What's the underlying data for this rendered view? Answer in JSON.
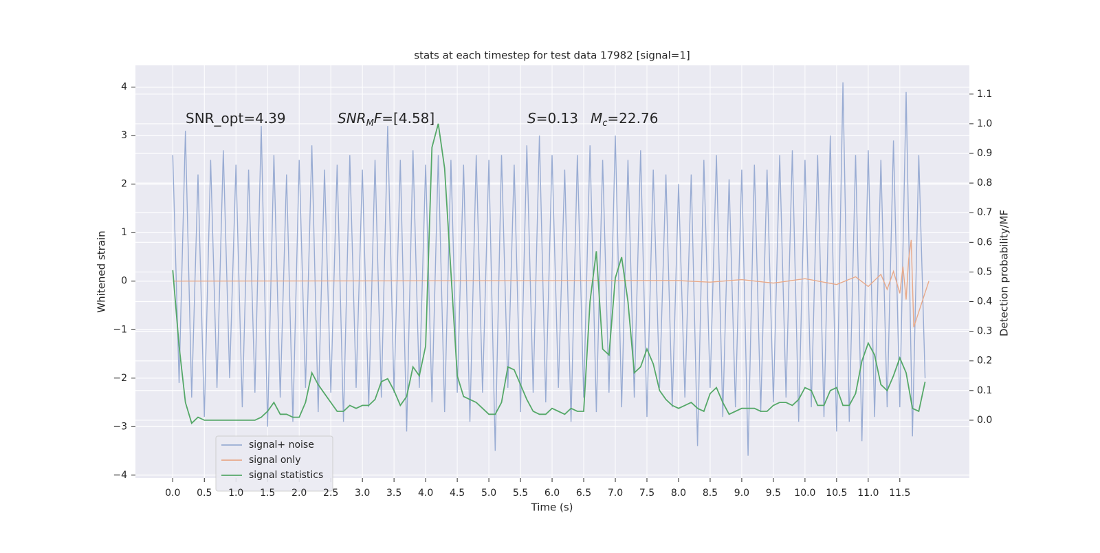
{
  "chart_data": {
    "type": "line",
    "title": "stats at each timestep for test data 17982 [signal=1]",
    "xlabel": "Time (s)",
    "ylabel": "Whitened strain",
    "y2label": "Detection probability/MF",
    "annotations": [
      [
        "SNR_opt=4.39"
      ],
      [
        "SNR",
        "M",
        "F",
        "=[4.58]"
      ],
      [
        "S",
        "=0.13"
      ],
      [
        "M",
        "c",
        "=22.76"
      ]
    ],
    "x": [
      0,
      0.1,
      0.2,
      0.3,
      0.4,
      0.5,
      0.6,
      0.7,
      0.8,
      0.9,
      1,
      1.1,
      1.2,
      1.3,
      1.4,
      1.5,
      1.6,
      1.7,
      1.8,
      1.9,
      2,
      2.1,
      2.2,
      2.3,
      2.4,
      2.5,
      2.6,
      2.7,
      2.8,
      2.9,
      3,
      3.1,
      3.2,
      3.3,
      3.4,
      3.5,
      3.6,
      3.7,
      3.8,
      3.9,
      4,
      4.1,
      4.2,
      4.3,
      4.4,
      4.5,
      4.6,
      4.7,
      4.8,
      4.9,
      5,
      5.1,
      5.2,
      5.3,
      5.4,
      5.5,
      5.6,
      5.7,
      5.8,
      5.9,
      6,
      6.1,
      6.2,
      6.3,
      6.4,
      6.5,
      6.6,
      6.7,
      6.8,
      6.9,
      7,
      7.1,
      7.2,
      7.3,
      7.4,
      7.5,
      7.6,
      7.7,
      7.8,
      7.9,
      8,
      8.1,
      8.2,
      8.3,
      8.4,
      8.5,
      8.6,
      8.7,
      8.8,
      8.9,
      9,
      9.1,
      9.2,
      9.3,
      9.4,
      9.5,
      9.6,
      9.7,
      9.8,
      9.9,
      10,
      10.1,
      10.2,
      10.3,
      10.4,
      10.5,
      10.6,
      10.7,
      10.8,
      10.9,
      11,
      11.1,
      11.2,
      11.3,
      11.4,
      11.5,
      11.6,
      11.7,
      11.8,
      11.9
    ],
    "series": [
      {
        "name": "signal+ noise",
        "color": "#99acd3",
        "values": [
          2.6,
          -2.1,
          3.1,
          -2.4,
          2.2,
          -2.8,
          2.5,
          -2.2,
          2.7,
          -2.0,
          2.4,
          -2.6,
          2.3,
          -2.3,
          3.2,
          -3.0,
          2.6,
          -2.4,
          2.2,
          -2.9,
          2.5,
          -2.2,
          2.8,
          -2.7,
          2.3,
          -2.3,
          2.4,
          -2.9,
          2.6,
          -2.2,
          2.3,
          -2.6,
          2.5,
          -2.4,
          3.2,
          -2.3,
          2.5,
          -3.1,
          2.7,
          -2.2,
          2.4,
          -2.5,
          2.6,
          -2.7,
          2.5,
          -2.3,
          2.4,
          -2.9,
          2.6,
          -2.3,
          2.5,
          -3.5,
          2.6,
          -2.2,
          2.4,
          -2.7,
          2.8,
          -2.3,
          3.0,
          -2.5,
          2.6,
          -2.2,
          2.3,
          -2.9,
          2.6,
          -2.4,
          2.8,
          -2.7,
          2.5,
          -2.3,
          3.0,
          -2.6,
          2.5,
          -2.4,
          2.7,
          -2.8,
          2.3,
          -2.2,
          2.2,
          -2.6,
          2.0,
          -2.4,
          2.2,
          -3.4,
          2.5,
          -2.2,
          2.6,
          -2.8,
          2.1,
          -2.6,
          2.3,
          -3.6,
          2.4,
          -2.7,
          2.3,
          -2.5,
          2.6,
          -2.4,
          2.7,
          -2.9,
          2.5,
          -2.6,
          2.6,
          -2.8,
          3.0,
          -3.1,
          4.1,
          -2.9,
          2.6,
          -3.3,
          2.7,
          -2.8,
          2.5,
          -2.6,
          2.9,
          -2.6,
          3.9,
          -3.2,
          2.6,
          -2.0
        ]
      },
      {
        "name": "signal only",
        "color": "#e8a989",
        "x": [
          0,
          8.0,
          8.5,
          9.0,
          9.5,
          10.0,
          10.5,
          10.8,
          11.0,
          11.2,
          11.3,
          11.4,
          11.5,
          11.55,
          11.6,
          11.64,
          11.68,
          11.72,
          11.96
        ],
        "values": [
          0,
          0.01,
          -0.02,
          0.03,
          -0.04,
          0.05,
          -0.07,
          0.09,
          -0.11,
          0.14,
          -0.17,
          0.2,
          -0.25,
          0.3,
          -0.38,
          0.45,
          0.85,
          -0.95,
          0
        ]
      },
      {
        "name": "signal statistics",
        "color": "#55a868",
        "axis": "y2",
        "values": [
          0.506,
          0.25,
          0.06,
          -0.01,
          0.01,
          0,
          0,
          0,
          0,
          0,
          0,
          0,
          0,
          0,
          0.01,
          0.03,
          0.06,
          0.02,
          0.02,
          0.01,
          0.01,
          0.06,
          0.16,
          0.12,
          0.09,
          0.06,
          0.03,
          0.03,
          0.05,
          0.04,
          0.05,
          0.05,
          0.07,
          0.13,
          0.14,
          0.1,
          0.05,
          0.08,
          0.18,
          0.15,
          0.25,
          0.92,
          1.0,
          0.85,
          0.5,
          0.15,
          0.08,
          0.07,
          0.06,
          0.04,
          0.02,
          0.02,
          0.06,
          0.18,
          0.17,
          0.12,
          0.07,
          0.03,
          0.02,
          0.02,
          0.04,
          0.03,
          0.02,
          0.04,
          0.03,
          0.03,
          0.4,
          0.57,
          0.24,
          0.22,
          0.48,
          0.55,
          0.4,
          0.16,
          0.18,
          0.24,
          0.19,
          0.1,
          0.07,
          0.05,
          0.04,
          0.05,
          0.06,
          0.04,
          0.03,
          0.09,
          0.11,
          0.06,
          0.02,
          0.03,
          0.04,
          0.04,
          0.04,
          0.03,
          0.03,
          0.05,
          0.06,
          0.06,
          0.05,
          0.07,
          0.11,
          0.1,
          0.05,
          0.05,
          0.1,
          0.11,
          0.05,
          0.05,
          0.09,
          0.2,
          0.26,
          0.22,
          0.12,
          0.1,
          0.15,
          0.21,
          0.16,
          0.04,
          0.03,
          0.13
        ]
      }
    ],
    "xlim": [
      -0.59,
      12.6
    ],
    "xticks": [
      {
        "value": 0,
        "label": "0.0"
      },
      0.5,
      {
        "value": 1,
        "label": "1.0"
      },
      1.5,
      {
        "value": 2,
        "label": "2.0"
      },
      2.5,
      {
        "value": 3,
        "label": "3.0"
      },
      3.5,
      {
        "value": 4,
        "label": "4.0"
      },
      4.5,
      {
        "value": 5,
        "label": "5.0"
      },
      5.5,
      {
        "value": 6,
        "label": "6.0"
      },
      6.5,
      {
        "value": 7,
        "label": "7.0"
      },
      7.5,
      {
        "value": 8,
        "label": "8.0"
      },
      8.5,
      {
        "value": 9,
        "label": "9.0"
      },
      9.5,
      {
        "value": 10,
        "label": "10.0"
      },
      10.5,
      {
        "value": 11,
        "label": "11.0"
      },
      11.5
    ],
    "ylim": [
      -4.06,
      4.45
    ],
    "yticks": [
      {
        "value": -4,
        "label": "−4"
      },
      {
        "value": -3,
        "label": "−3"
      },
      {
        "value": -2,
        "label": "−2"
      },
      {
        "value": -1,
        "label": "−1"
      },
      0,
      1,
      2,
      3,
      4
    ],
    "y2lim": [
      -0.195,
      1.197
    ],
    "y2ticks": [
      {
        "value": 0,
        "label": "0.0"
      },
      0.1,
      0.2,
      0.3,
      0.4,
      0.5,
      0.6,
      0.7,
      0.8,
      0.9,
      {
        "value": 1,
        "label": "1.0"
      },
      1.1
    ],
    "grid": true,
    "legend": "lower left"
  }
}
